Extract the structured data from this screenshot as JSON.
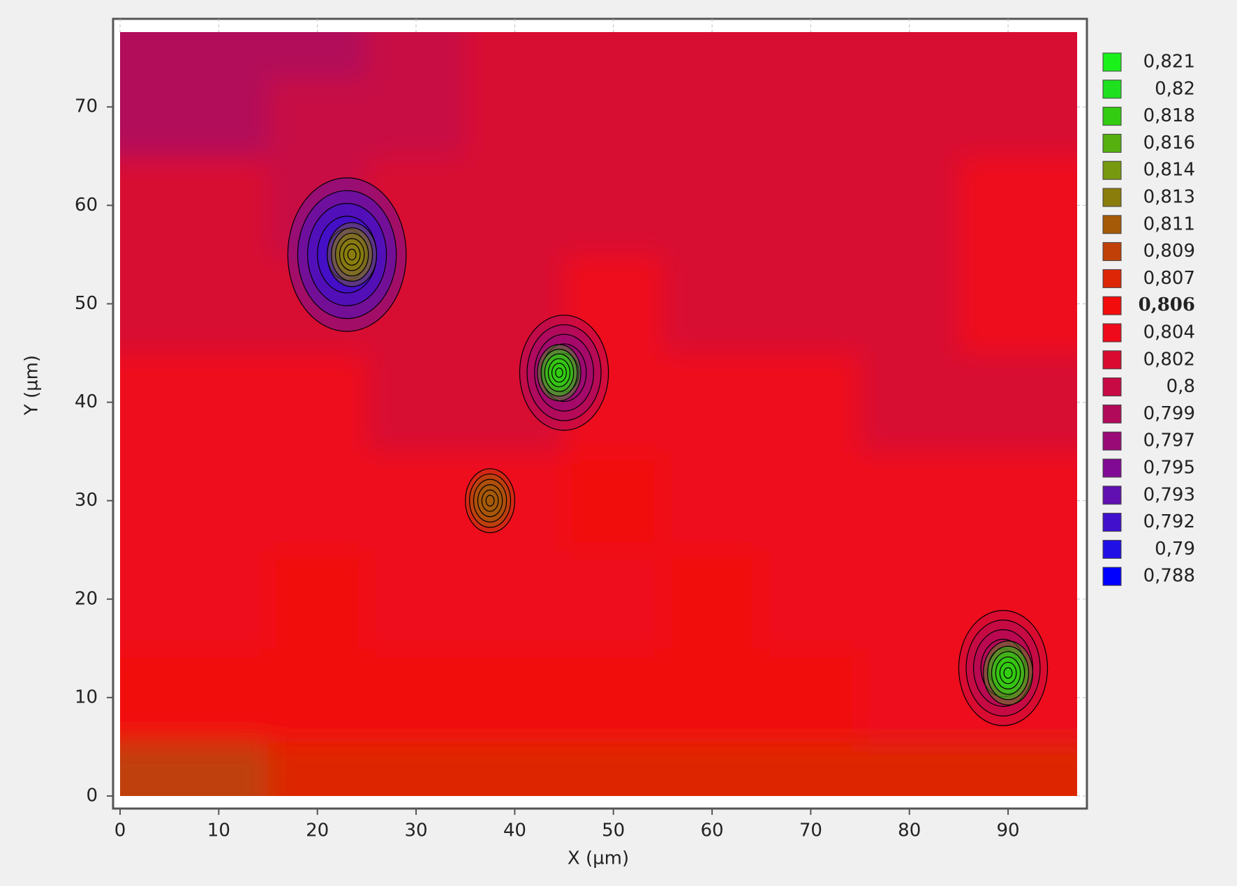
{
  "chart_data": {
    "type": "contour",
    "xlabel": "X (µm)",
    "ylabel": "Y (µm)",
    "xlim": [
      0,
      97
    ],
    "ylim": [
      0,
      77.6
    ],
    "xticks": [
      0,
      10,
      20,
      30,
      40,
      50,
      60,
      70,
      80,
      90
    ],
    "yticks": [
      0,
      10,
      20,
      30,
      40,
      50,
      60,
      70
    ],
    "grid": true,
    "x": [
      0,
      10,
      20,
      30,
      40,
      50,
      60,
      70,
      80,
      90
    ],
    "y": [
      1,
      10,
      20,
      30,
      40,
      50,
      60,
      70,
      76
    ],
    "z": [
      [
        0.808,
        0.808,
        0.807,
        0.807,
        0.807,
        0.807,
        0.807,
        0.807,
        0.807,
        0.807
      ],
      [
        0.805,
        0.805,
        0.805,
        0.805,
        0.805,
        0.805,
        0.805,
        0.805,
        0.804,
        0.803
      ],
      [
        0.804,
        0.804,
        0.805,
        0.804,
        0.804,
        0.804,
        0.805,
        0.804,
        0.804,
        0.803
      ],
      [
        0.803,
        0.804,
        0.804,
        0.803,
        0.804,
        0.805,
        0.804,
        0.804,
        0.804,
        0.804
      ],
      [
        0.803,
        0.803,
        0.803,
        0.802,
        0.802,
        0.804,
        0.804,
        0.803,
        0.802,
        0.802
      ],
      [
        0.802,
        0.802,
        0.801,
        0.802,
        0.802,
        0.803,
        0.802,
        0.802,
        0.802,
        0.803
      ],
      [
        0.801,
        0.801,
        0.8,
        0.801,
        0.802,
        0.802,
        0.802,
        0.802,
        0.802,
        0.803
      ],
      [
        0.799,
        0.799,
        0.8,
        0.8,
        0.801,
        0.801,
        0.802,
        0.802,
        0.802,
        0.802
      ],
      [
        0.798,
        0.798,
        0.799,
        0.8,
        0.801,
        0.801,
        0.802,
        0.802,
        0.802,
        0.802
      ]
    ],
    "spots": [
      {
        "x": 23,
        "y": 55,
        "value": 0.792,
        "radius": 6
      },
      {
        "x": 23.5,
        "y": 55,
        "value": 0.813,
        "radius": 2.5
      },
      {
        "x": 45,
        "y": 43,
        "value": 0.797,
        "radius": 4.5
      },
      {
        "x": 44.5,
        "y": 43,
        "value": 0.818,
        "radius": 2.2
      },
      {
        "x": 37.5,
        "y": 30,
        "value": 0.81,
        "radius": 2.5
      },
      {
        "x": 89.5,
        "y": 13,
        "value": 0.799,
        "radius": 4.5
      },
      {
        "x": 90,
        "y": 12.5,
        "value": 0.818,
        "radius": 2.5
      }
    ],
    "levels": [
      {
        "value": 0.821,
        "label": "0,821"
      },
      {
        "value": 0.82,
        "label": "0,82"
      },
      {
        "value": 0.818,
        "label": "0,818"
      },
      {
        "value": 0.816,
        "label": "0,816"
      },
      {
        "value": 0.814,
        "label": "0,814"
      },
      {
        "value": 0.813,
        "label": "0,813"
      },
      {
        "value": 0.811,
        "label": "0,811"
      },
      {
        "value": 0.809,
        "label": "0,809"
      },
      {
        "value": 0.807,
        "label": "0,807"
      },
      {
        "value": 0.806,
        "label": "0,806"
      },
      {
        "value": 0.804,
        "label": "0,804"
      },
      {
        "value": 0.802,
        "label": "0,802"
      },
      {
        "value": 0.8,
        "label": "0,8"
      },
      {
        "value": 0.799,
        "label": "0,799"
      },
      {
        "value": 0.797,
        "label": "0,797"
      },
      {
        "value": 0.795,
        "label": "0,795"
      },
      {
        "value": 0.793,
        "label": "0,793"
      },
      {
        "value": 0.792,
        "label": "0,792"
      },
      {
        "value": 0.79,
        "label": "0,79"
      },
      {
        "value": 0.788,
        "label": "0,788"
      }
    ],
    "level_colors": [
      "#1af01a",
      "#1ee01e",
      "#33cc11",
      "#55b010",
      "#779910",
      "#8a7d0c",
      "#a55a08",
      "#c04008",
      "#dd2606",
      "#f20c0c",
      "#ee0a1a",
      "#d80a30",
      "#c80a44",
      "#b20a5a",
      "#9a0a76",
      "#800a94",
      "#6010b0",
      "#4010cc",
      "#2010e6",
      "#0000ff"
    ],
    "highlight_level": 0.806
  }
}
